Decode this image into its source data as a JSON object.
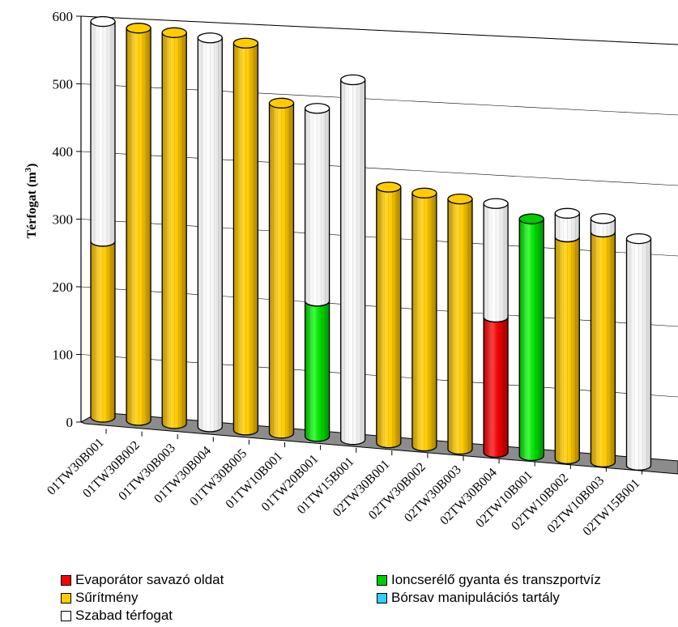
{
  "chart_data": {
    "type": "bar",
    "ylabel": "Térfogat",
    "ylabel_unit": "(m",
    "ylabel_sup": "3",
    "ylabel_close": ")",
    "ylim": [
      0,
      600
    ],
    "yticks": [
      "0",
      "100",
      "200",
      "300",
      "400",
      "500",
      "600"
    ],
    "categories": [
      "01TW30B001",
      "01TW30B002",
      "01TW30B003",
      "01TW30B004",
      "01TW30B005",
      "01TW10B001",
      "01TW20B001",
      "01TW15B001",
      "02TW30B001",
      "02TW30B002",
      "02TW30B003",
      "02TW30B004",
      "02TW10B001",
      "02TW10B002",
      "02TW10B003",
      "02TW15B001"
    ],
    "series": [
      {
        "name": "Evaporátor savazó oldat",
        "color": "#ff0000",
        "values": [
          0,
          0,
          0,
          0,
          0,
          0,
          0,
          0,
          0,
          0,
          0,
          200,
          0,
          0,
          0,
          0
        ]
      },
      {
        "name": "Ioncserélő gyanta és transzportvíz",
        "color": "#00cc00",
        "values": [
          0,
          0,
          0,
          0,
          0,
          0,
          200,
          0,
          0,
          0,
          0,
          0,
          350,
          0,
          0,
          0
        ]
      },
      {
        "name": "Sűrítmény",
        "color": "#ffcc00",
        "values": [
          260,
          580,
          578,
          0,
          572,
          488,
          0,
          0,
          378,
          374,
          370,
          0,
          0,
          328,
          340,
          0
        ]
      },
      {
        "name": "Bórsav manipulációs tartály",
        "color": "#33ccff",
        "values": [
          0,
          0,
          0,
          0,
          0,
          0,
          0,
          0,
          0,
          0,
          0,
          0,
          0,
          0,
          0,
          0
        ]
      },
      {
        "name": "Szabad térfogat",
        "color": "#ffffff",
        "values": [
          325,
          0,
          0,
          575,
          0,
          0,
          285,
          532,
          0,
          0,
          0,
          168,
          0,
          35,
          20,
          335
        ]
      }
    ],
    "grid": true,
    "legend_position": "bottom"
  },
  "legend": {
    "items": [
      {
        "label": "Evaporátor savazó oldat",
        "color": "#ff0000"
      },
      {
        "label": "Ioncserélő gyanta és transzportvíz",
        "color": "#00cc00"
      },
      {
        "label": "Sűrítmény",
        "color": "#ffcc00"
      },
      {
        "label": "Bórsav manipulációs tartály",
        "color": "#33ccff"
      },
      {
        "label": "Szabad térfogat",
        "color": "#ffffff"
      }
    ]
  }
}
